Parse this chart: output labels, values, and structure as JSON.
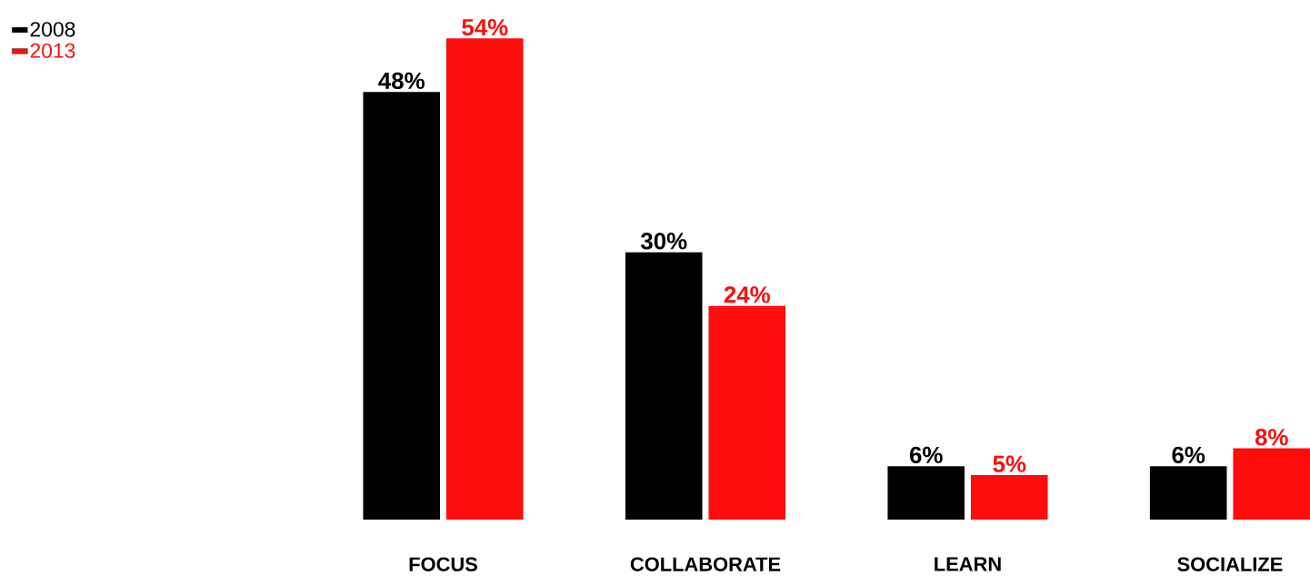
{
  "chart_data": {
    "type": "bar",
    "categories": [
      "FOCUS",
      "COLLABORATE",
      "LEARN",
      "SOCIALIZE"
    ],
    "series": [
      {
        "name": "2008",
        "color": "#000000",
        "values": [
          48,
          30,
          6,
          6
        ],
        "value_labels": [
          "48%",
          "30%",
          "6%",
          "6%"
        ]
      },
      {
        "name": "2013",
        "color": "#ff0c0c",
        "values": [
          54,
          24,
          5,
          8
        ],
        "value_labels": [
          "54%",
          "24%",
          "5%",
          "8%"
        ]
      }
    ],
    "legend": "top left"
  }
}
